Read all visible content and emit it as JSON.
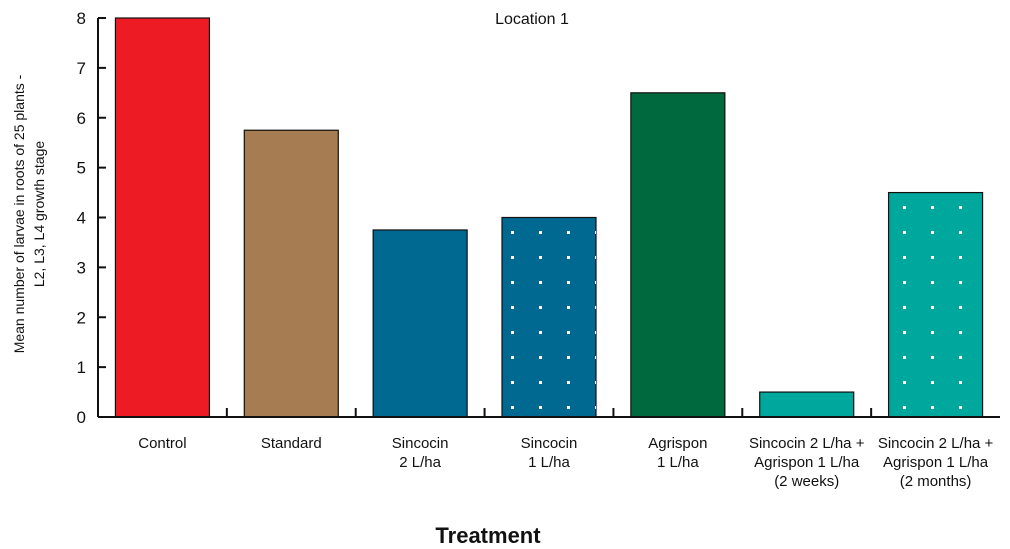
{
  "chart_data": {
    "type": "bar",
    "subtitle": "Location 1",
    "xlabel": "Treatment",
    "ylabel_lines": [
      "Mean number of larvae in roots of 25 plants -",
      "L2, L3, L4 growth stage"
    ],
    "ylim": [
      0,
      8
    ],
    "yticks": [
      "0",
      "1",
      "2",
      "3",
      "4",
      "5",
      "6",
      "7",
      "8"
    ],
    "categories": [
      {
        "lines": [
          "Control"
        ]
      },
      {
        "lines": [
          "Standard"
        ]
      },
      {
        "lines": [
          "Sincocin",
          "2 L/ha"
        ]
      },
      {
        "lines": [
          "Sincocin",
          "1 L/ha"
        ]
      },
      {
        "lines": [
          "Agrispon",
          "1 L/ha"
        ]
      },
      {
        "lines": [
          "Sincocin 2 L/ha +",
          "Agrispon 1 L/ha",
          "(2 weeks)"
        ]
      },
      {
        "lines": [
          "Sincocin 2 L/ha +",
          "Agrispon 1 L/ha",
          "(2 months)"
        ]
      }
    ],
    "values": [
      8,
      5.75,
      3.75,
      4,
      6.5,
      0.5,
      4.5
    ],
    "colors": [
      "#ed1c24",
      "#a67c52",
      "#006991",
      "#006991",
      "#00693e",
      "#00a79d",
      "#00a79d"
    ],
    "dotted": [
      false,
      false,
      false,
      true,
      false,
      false,
      true
    ],
    "grid": false,
    "legend": "none"
  }
}
